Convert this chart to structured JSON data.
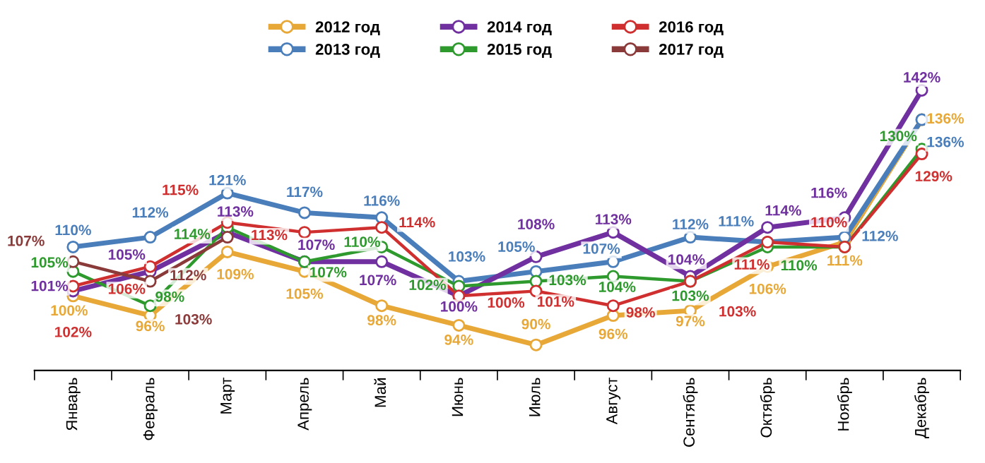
{
  "chart_data": {
    "type": "line",
    "categories": [
      "Январь",
      "Февраль",
      "Март",
      "Апрель",
      "Май",
      "Июнь",
      "Июль",
      "Август",
      "Сентябрь",
      "Октябрь",
      "Ноябрь",
      "Декабрь"
    ],
    "series": [
      {
        "name": "2012 год",
        "color": "#e8a838",
        "values": [
          100,
          96,
          109,
          105,
          98,
          94,
          90,
          96,
          97,
          106,
          111,
          136
        ],
        "value_labels": [
          "100%",
          "96%",
          "109%",
          "105%",
          "98%",
          "94%",
          "90%",
          "96%",
          "97%",
          "106%",
          "111%",
          "136%"
        ]
      },
      {
        "name": "2013 год",
        "color": "#4a7ebb",
        "values": [
          110,
          112,
          121,
          117,
          116,
          103,
          105,
          107,
          112,
          111,
          112,
          136
        ],
        "value_labels": [
          "110%",
          "112%",
          "121%",
          "117%",
          "116%",
          "103%",
          "105%",
          "107%",
          "112%",
          "111%",
          "112%",
          "136%"
        ]
      },
      {
        "name": "2014 год",
        "color": "#7030a0",
        "values": [
          101,
          105,
          113,
          107,
          107,
          100,
          108,
          113,
          104,
          114,
          116,
          142
        ],
        "value_labels": [
          "101%",
          "105%",
          "113%",
          "107%",
          "107%",
          "100%",
          "108%",
          "113%",
          "104%",
          "114%",
          "116%",
          "142%"
        ]
      },
      {
        "name": "2015 год",
        "color": "#2e9a2e",
        "values": [
          105,
          98,
          114,
          107,
          110,
          102,
          103,
          104,
          103,
          110,
          110,
          130
        ],
        "value_labels": [
          "105%",
          "98%",
          "114%",
          "107%",
          "110%",
          "102%",
          "103%",
          "104%",
          "103%",
          "110%",
          null,
          "130%"
        ]
      },
      {
        "name": "2016 год",
        "color": "#d02f2f",
        "values": [
          102,
          106,
          115,
          113,
          114,
          100,
          101,
          98,
          103,
          111,
          110,
          129
        ],
        "value_labels": [
          "102%",
          "106%",
          "115%",
          "113%",
          "114%",
          "100%",
          "101%",
          "98%",
          "103%",
          "111%",
          "110%",
          "129%"
        ]
      },
      {
        "name": "2017 год",
        "color": "#8b3a3a",
        "values": [
          107,
          103,
          112,
          null,
          null,
          null,
          null,
          null,
          null,
          null,
          null,
          null
        ],
        "value_labels": [
          "107%",
          "103%",
          "112%",
          null,
          null,
          null,
          null,
          null,
          null,
          null,
          null,
          null
        ]
      }
    ],
    "legend": "top",
    "marker": "circle",
    "line_style": "solid",
    "grid": false
  }
}
